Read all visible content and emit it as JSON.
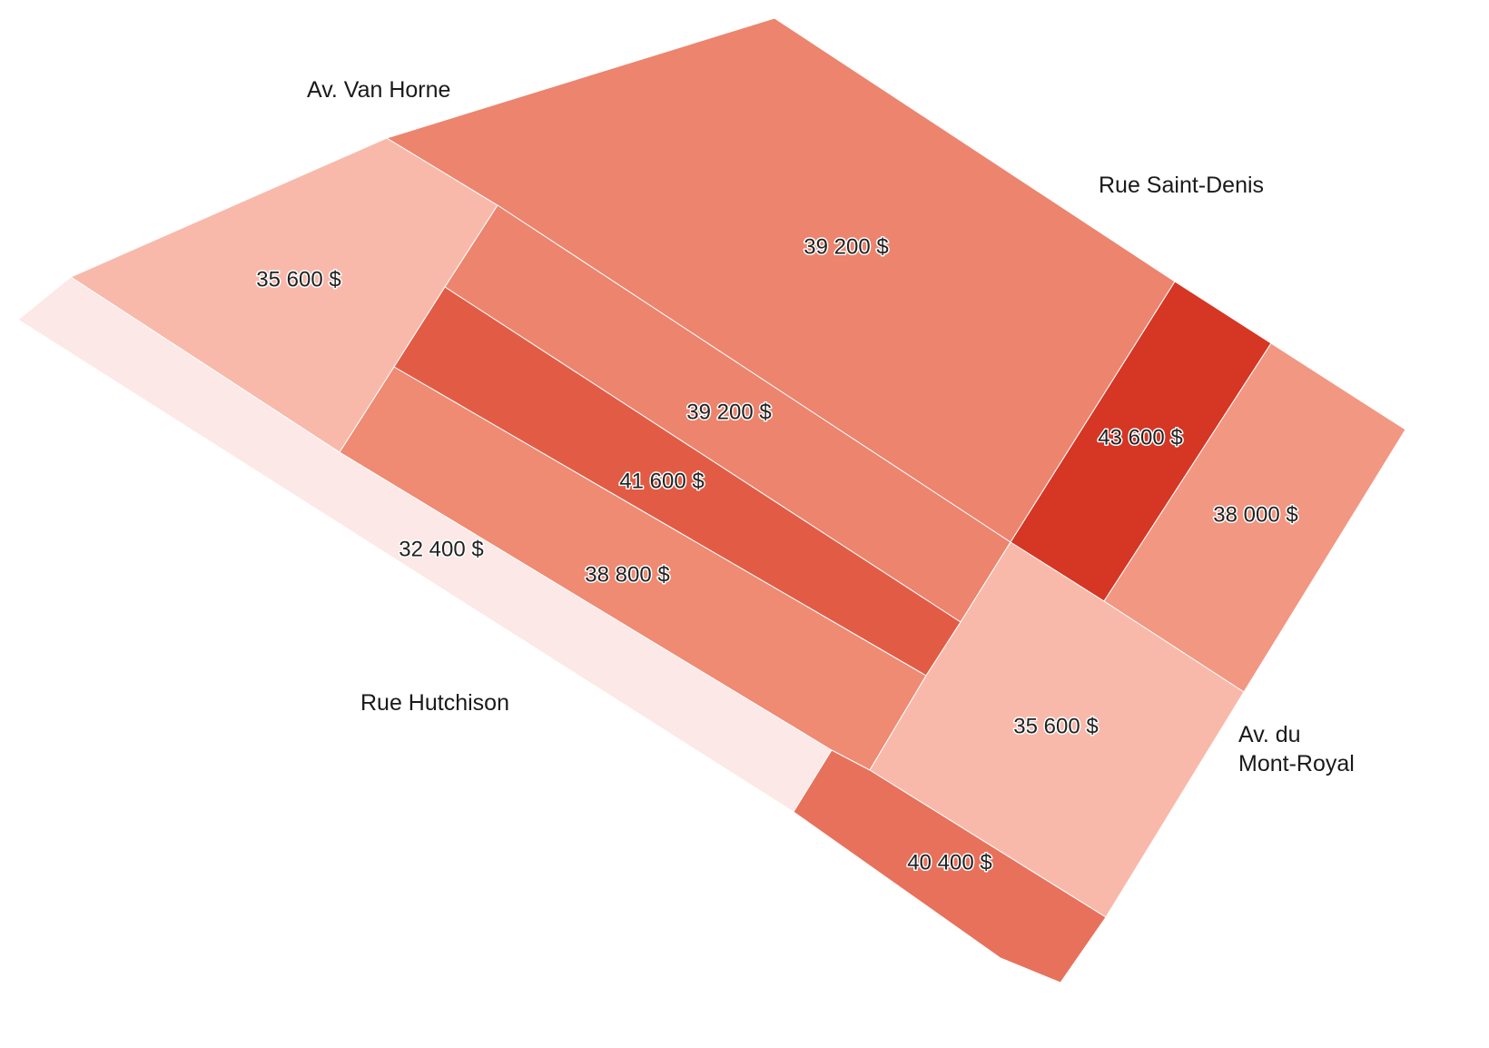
{
  "streets": {
    "van_horne": "Av. Van Horne",
    "saint_denis": "Rue Saint-Denis",
    "hutchison": "Rue Hutchison",
    "mont_royal_line1": "Av. du",
    "mont_royal_line2": "Mont-Royal"
  },
  "zones": [
    {
      "id": "hutchison-strip",
      "value": "32 400 $",
      "color": "#fce8e6"
    },
    {
      "id": "west-triangle",
      "value": "35 600 $",
      "color": "#f9b9aa"
    },
    {
      "id": "north-block",
      "value": "39 200 $",
      "color": "#ed846e"
    },
    {
      "id": "middle-upper-strip",
      "value": "39 200 $",
      "color": "#ed846e"
    },
    {
      "id": "middle-strip",
      "value": "41 600 $",
      "color": "#e25c45"
    },
    {
      "id": "lower-strip",
      "value": "38 800 $",
      "color": "#ef8a73"
    },
    {
      "id": "east-strip",
      "value": "43 600 $",
      "color": "#d63624"
    },
    {
      "id": "far-east-block",
      "value": "38 000 $",
      "color": "#f29782"
    },
    {
      "id": "south-east-block",
      "value": "35 600 $",
      "color": "#f9b9aa"
    },
    {
      "id": "south-block",
      "value": "40 400 $",
      "color": "#e8715c"
    }
  ]
}
